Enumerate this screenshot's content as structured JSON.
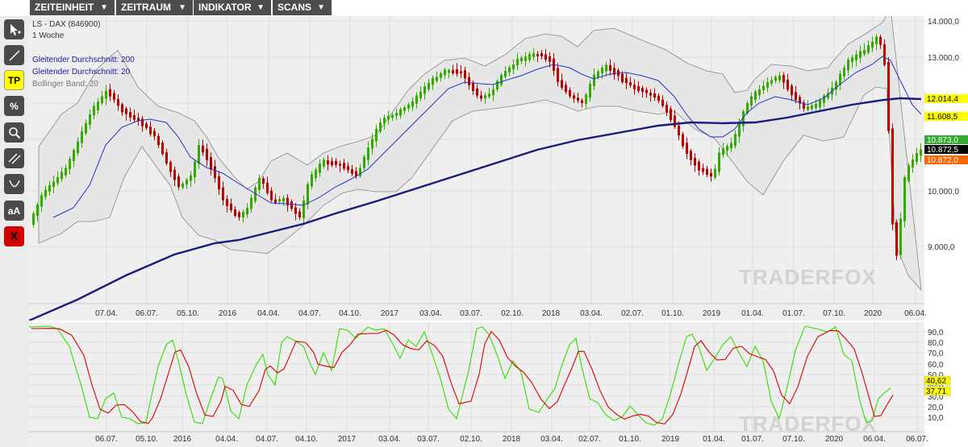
{
  "menu": [
    {
      "label": "ZEITEINHEIT"
    },
    {
      "label": "ZEITRAUM"
    },
    {
      "label": "INDIKATOR"
    },
    {
      "label": "SCANS"
    }
  ],
  "menu_arrow": "▼",
  "tools": [
    "arrow-select",
    "line",
    "TP",
    "%",
    "zoom",
    "parallel",
    "curve",
    "aA",
    "X"
  ],
  "tool_labels": {
    "tp": "TP",
    "percent": "%",
    "text": "aA",
    "close": "X"
  },
  "instrument": {
    "name": "LS - DAX (846900)",
    "timeframe": "1 Woche"
  },
  "legend": [
    {
      "label": "Gleitender Durchschnitt: 200",
      "color": "#1a1a99"
    },
    {
      "label": "Gleitender Durchschnitt: 20",
      "color": "#1a1a99"
    },
    {
      "label": "Bollinger Band: 20",
      "color": "#888888"
    }
  ],
  "price_axis": [
    "14.000,0",
    "13.000,0",
    "10.000,0",
    "9.000,0"
  ],
  "price_badges": [
    {
      "label": "12.014,4",
      "bg": "#ffff00",
      "fg": "#000000"
    },
    {
      "label": "11.608,5",
      "bg": "#ffff00",
      "fg": "#000000"
    },
    {
      "label": "10.873,0",
      "bg": "#33aa33",
      "fg": "#ffffff"
    },
    {
      "label": "10.872,5",
      "bg": "#000000",
      "fg": "#ffffff"
    },
    {
      "label": "10.872,0",
      "bg": "#ff6600",
      "fg": "#ffffff"
    }
  ],
  "x_axis_main": [
    "07.04.",
    "06.07.",
    "05.10.",
    "2016",
    "04.04.",
    "04.07.",
    "04.10.",
    "2017",
    "03.04.",
    "03.07.",
    "02.10.",
    "2018",
    "03.04.",
    "02.07.",
    "01.10.",
    "2019",
    "01.04.",
    "01.07.",
    "07.10.",
    "2020",
    "06.04."
  ],
  "x_axis_osc": [
    "06.07.",
    "05.10.",
    "2016",
    "04.04.",
    "04.07.",
    "04.10.",
    "2017",
    "03.04.",
    "03.07.",
    "02.10.",
    "2018",
    "03.04.",
    "02.07.",
    "01.10.",
    "2019",
    "01.04.",
    "01.07.",
    "07.10.",
    "2020",
    "06.04.",
    "06.07."
  ],
  "osc_axis": [
    "90,0",
    "80,0",
    "70,0",
    "60,0",
    "50,0",
    "40,0",
    "30,0",
    "20,0",
    "10,0"
  ],
  "osc_badges": [
    {
      "label": "40,62",
      "bg": "#ffff00",
      "fg": "#000000"
    },
    {
      "label": "37,71",
      "bg": "#ffff00",
      "fg": "#000000"
    }
  ],
  "watermark": "TRADERFOX",
  "colors": {
    "up": "#33aa00",
    "down": "#bb0000",
    "ma200": "#1a1a80",
    "ma20": "#2233cc",
    "band_fill": "#e6e6e6",
    "band_line": "#888888",
    "osc_k": "#33dd00",
    "osc_d": "#dd0000"
  }
}
